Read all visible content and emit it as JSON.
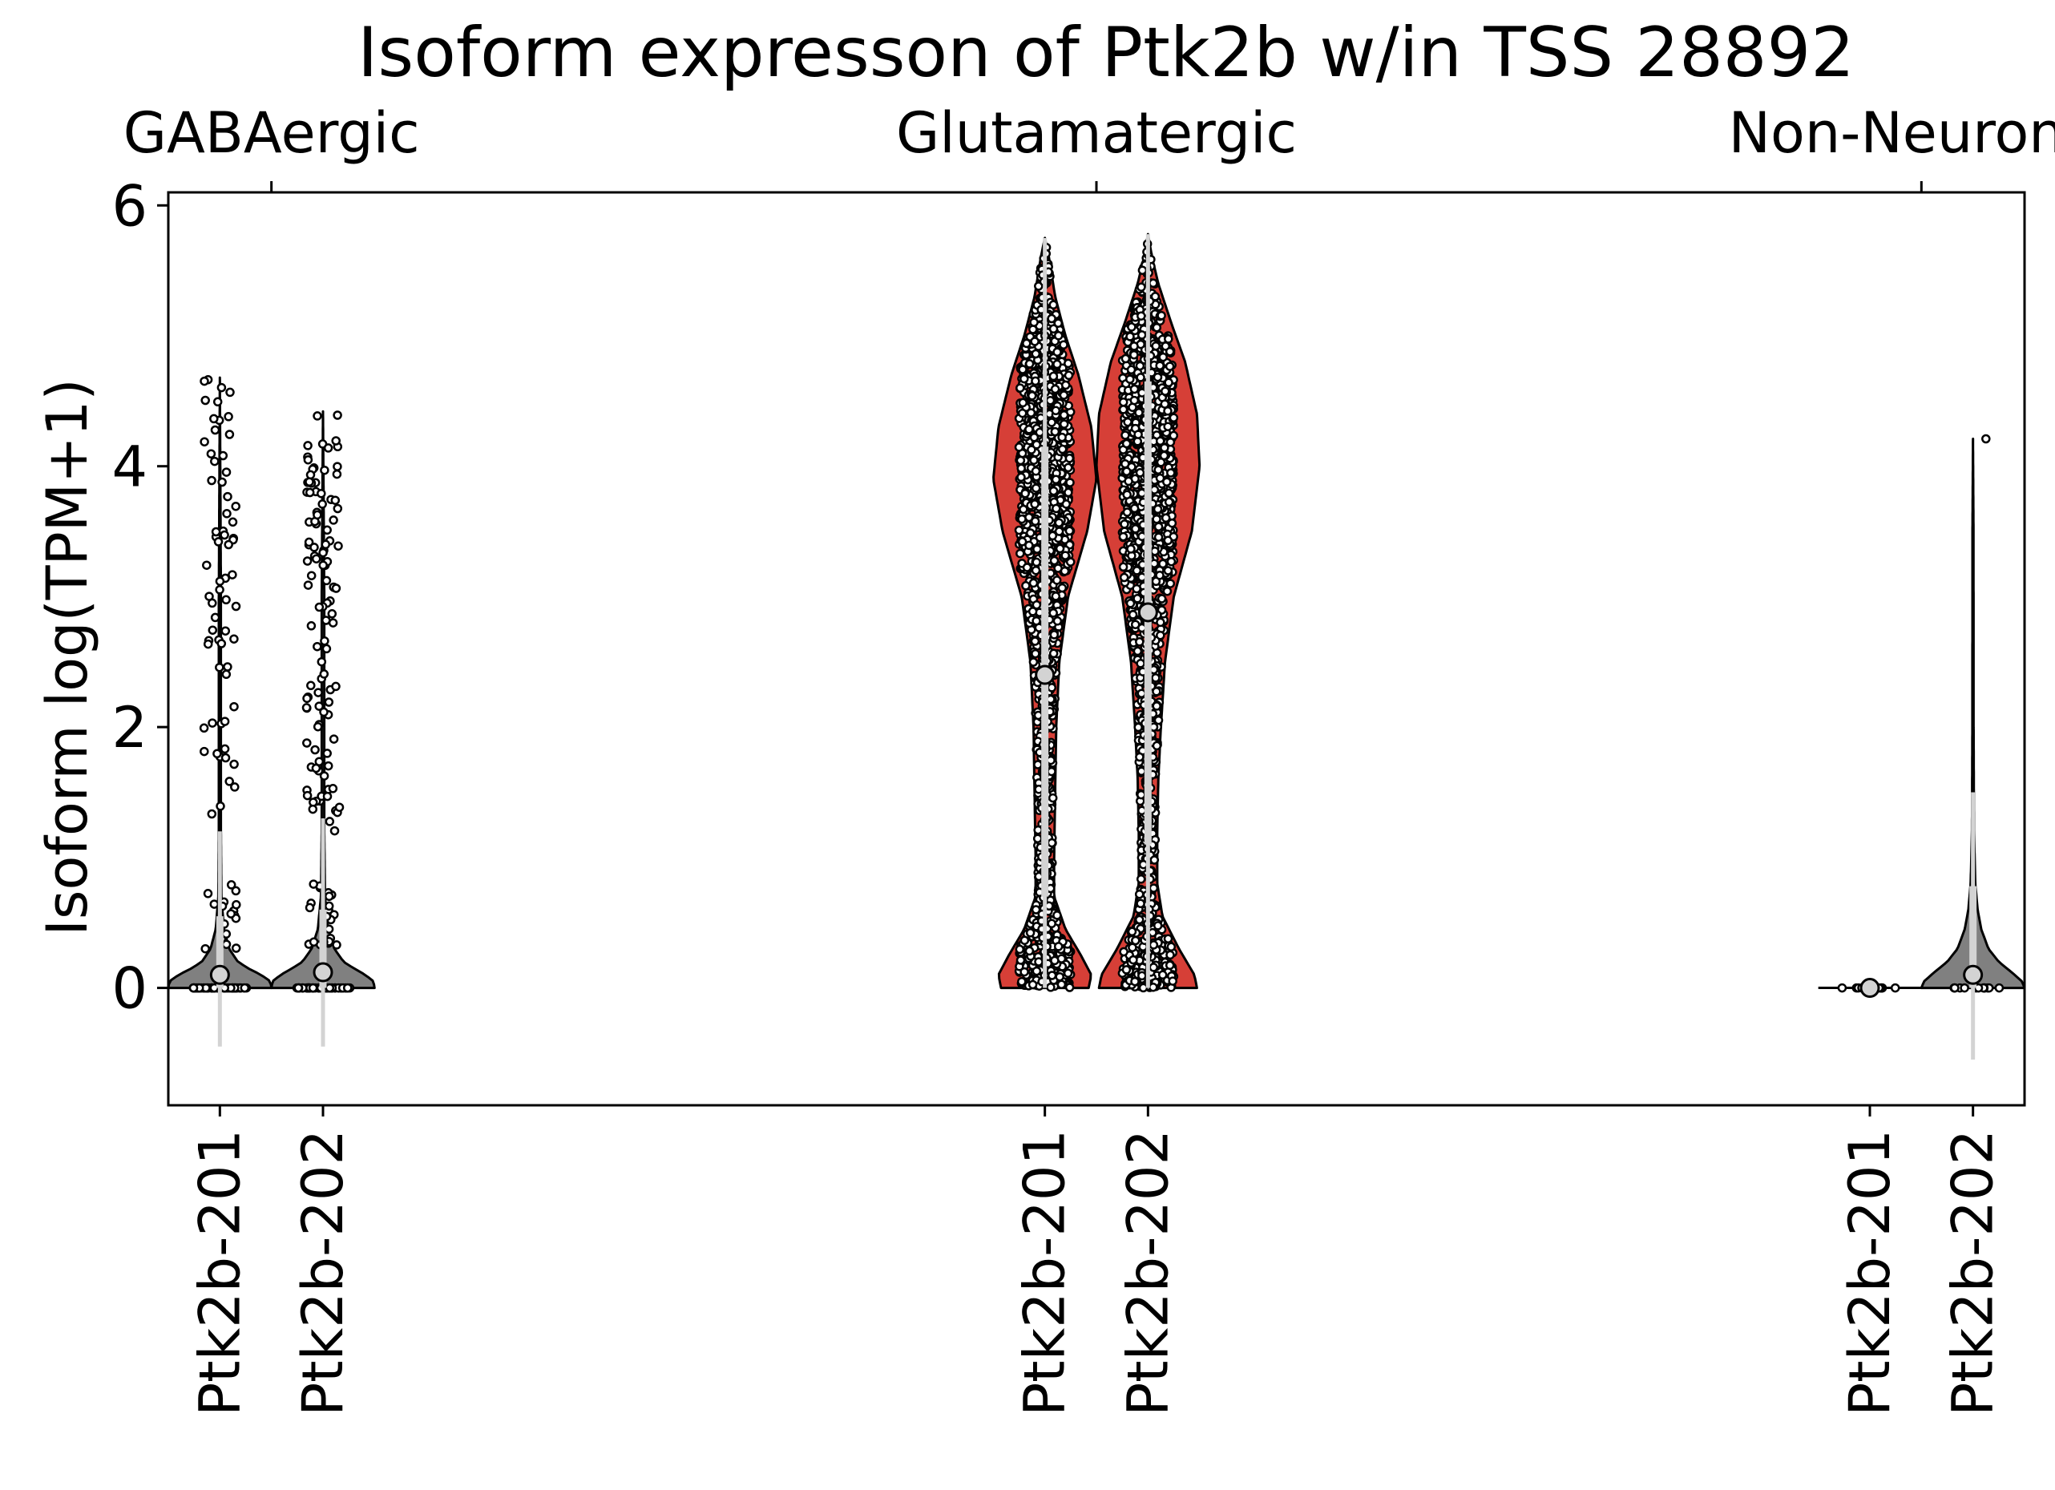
{
  "chart_data": {
    "type": "violin",
    "title": "Isoform expresson of Ptk2b w/in TSS 28892",
    "ylabel": "Isoform log(TPM+1)",
    "xlabel": "",
    "ylim": [
      -0.9,
      6.1
    ],
    "yticks": [
      0,
      2,
      4,
      6
    ],
    "grid": false,
    "colors": {
      "gray": "#808080",
      "red": "#d63f37",
      "box": "#d3d3d3"
    },
    "groups": [
      {
        "name": "GABAergic",
        "violins": [
          {
            "label": "Ptk2b-201",
            "color": "gray",
            "max": 4.68,
            "median": 0.1,
            "box": [
              0.0,
              0.55
            ],
            "whisker": [
              -0.45,
              1.2
            ],
            "profile": [
              [
                0,
                1.0
              ],
              [
                0.05,
                0.98
              ],
              [
                0.1,
                0.8
              ],
              [
                0.15,
                0.55
              ],
              [
                0.2,
                0.35
              ],
              [
                0.3,
                0.18
              ],
              [
                0.45,
                0.08
              ],
              [
                0.7,
                0.03
              ],
              [
                1.2,
                0.02
              ],
              [
                3.0,
                0.02
              ],
              [
                4.68,
                0.0
              ]
            ],
            "points": {
              "count": 60,
              "high": 82,
              "seed": 11
            }
          },
          {
            "label": "Ptk2b-202",
            "color": "gray",
            "max": 4.42,
            "median": 0.12,
            "box": [
              0.0,
              0.6
            ],
            "whisker": [
              -0.45,
              1.3
            ],
            "profile": [
              [
                0,
                1.0
              ],
              [
                0.05,
                0.98
              ],
              [
                0.1,
                0.82
              ],
              [
                0.15,
                0.6
              ],
              [
                0.2,
                0.4
              ],
              [
                0.3,
                0.22
              ],
              [
                0.45,
                0.1
              ],
              [
                0.7,
                0.04
              ],
              [
                1.2,
                0.025
              ],
              [
                3.0,
                0.025
              ],
              [
                4.42,
                0.0
              ]
            ],
            "points": {
              "count": 60,
              "high": 130,
              "seed": 23
            }
          }
        ]
      },
      {
        "name": "Glutamatergic",
        "violins": [
          {
            "label": "Ptk2b-201",
            "color": "red",
            "max": 5.75,
            "median": 2.4,
            "box": [
              0.7,
              4.15
            ],
            "whisker": [
              0.0,
              5.75
            ],
            "profile": [
              [
                0,
                0.85
              ],
              [
                0.1,
                0.9
              ],
              [
                0.25,
                0.7
              ],
              [
                0.45,
                0.4
              ],
              [
                0.7,
                0.18
              ],
              [
                1.0,
                0.18
              ],
              [
                1.5,
                0.2
              ],
              [
                2.0,
                0.22
              ],
              [
                2.5,
                0.28
              ],
              [
                3.0,
                0.45
              ],
              [
                3.5,
                0.82
              ],
              [
                3.9,
                1.0
              ],
              [
                4.3,
                0.9
              ],
              [
                4.7,
                0.65
              ],
              [
                5.0,
                0.4
              ],
              [
                5.3,
                0.2
              ],
              [
                5.6,
                0.08
              ],
              [
                5.75,
                0.0
              ]
            ],
            "points": {
              "count": 1600,
              "high": 0,
              "seed": 37
            }
          },
          {
            "label": "Ptk2b-202",
            "color": "red",
            "max": 5.78,
            "median": 2.88,
            "box": [
              1.1,
              4.65
            ],
            "whisker": [
              0.0,
              5.78
            ],
            "profile": [
              [
                0,
                0.95
              ],
              [
                0.1,
                0.9
              ],
              [
                0.3,
                0.6
              ],
              [
                0.55,
                0.28
              ],
              [
                0.8,
                0.18
              ],
              [
                1.2,
                0.18
              ],
              [
                1.6,
                0.2
              ],
              [
                2.0,
                0.25
              ],
              [
                2.5,
                0.33
              ],
              [
                3.0,
                0.5
              ],
              [
                3.5,
                0.85
              ],
              [
                4.0,
                1.0
              ],
              [
                4.4,
                0.95
              ],
              [
                4.8,
                0.72
              ],
              [
                5.1,
                0.45
              ],
              [
                5.4,
                0.2
              ],
              [
                5.6,
                0.08
              ],
              [
                5.78,
                0.0
              ]
            ],
            "points": {
              "count": 1700,
              "high": 0,
              "seed": 53
            }
          }
        ]
      },
      {
        "name": "Non-Neuronal",
        "violins": [
          {
            "label": "Ptk2b-201",
            "color": "gray",
            "max": 0.0,
            "median": 0.0,
            "box": [
              0,
              0
            ],
            "whisker": [
              0,
              0
            ],
            "profile": [],
            "points": {
              "count": 12,
              "high": 0,
              "seed": 71
            }
          },
          {
            "label": "Ptk2b-202",
            "color": "gray",
            "max": 4.21,
            "median": 0.1,
            "box": [
              0.0,
              0.78
            ],
            "whisker": [
              -0.55,
              1.5
            ],
            "profile": [
              [
                0,
                1.0
              ],
              [
                0.05,
                0.95
              ],
              [
                0.12,
                0.75
              ],
              [
                0.2,
                0.5
              ],
              [
                0.3,
                0.3
              ],
              [
                0.45,
                0.16
              ],
              [
                0.6,
                0.09
              ],
              [
                0.8,
                0.045
              ],
              [
                1.2,
                0.02
              ],
              [
                2.0,
                0.012
              ],
              [
                3.5,
                0.01
              ],
              [
                4.21,
                0.0
              ]
            ],
            "points": {
              "count": 14,
              "high": 1,
              "seed": 89
            }
          }
        ]
      }
    ]
  }
}
